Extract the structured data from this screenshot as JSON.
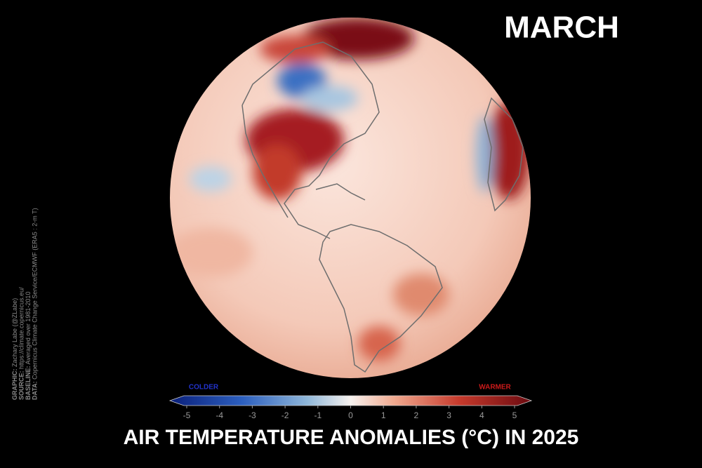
{
  "month": "MARCH",
  "title": "AIR TEMPERATURE ANOMALIES (°C) IN 2025",
  "colorbar": {
    "lim": [
      -5,
      5
    ],
    "ticks": [
      -5,
      -4,
      -3,
      -2,
      -1,
      0,
      1,
      2,
      3,
      4,
      5
    ],
    "cold_label": "COLDER",
    "warm_label": "WARMER"
  },
  "credits": [
    {
      "key": "GRAPHIC:",
      "text": "Zachary Labe (@ZLabe)"
    },
    {
      "key": "SOURCE:",
      "text": "https://climate.copernicus.eu/"
    },
    {
      "key": "BASELINE:",
      "text": "Averaged over 1981-2010"
    },
    {
      "key": "DATA:",
      "text": "Copernicus Climate Change Service/ECMWF (ERA5 : 2-m T)"
    }
  ]
}
